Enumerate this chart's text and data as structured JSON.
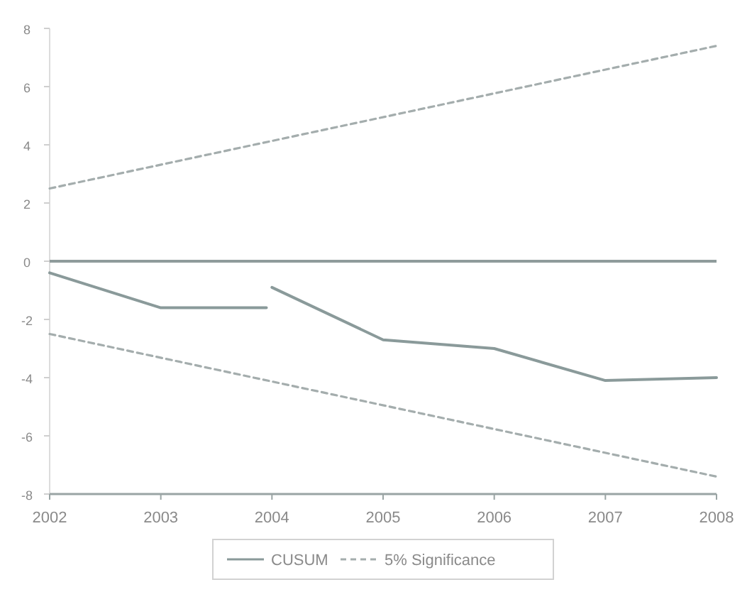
{
  "chart_data": {
    "type": "line",
    "series": [
      {
        "name": "CUSUM",
        "color": "#8a9a9a",
        "line_style": "solid",
        "x": [
          2002,
          2003,
          2003.95,
          2003.97,
          2004,
          2005,
          2006,
          2007,
          2008
        ],
        "values": [
          -0.4,
          -1.6,
          -1.6,
          null,
          -0.9,
          -2.7,
          -3.0,
          -4.1,
          -4.0
        ]
      },
      {
        "name": "5% Significance",
        "color": "#a4adad",
        "line_style": "dashed",
        "x": [
          2002,
          2008
        ],
        "values": [
          2.5,
          7.4
        ]
      },
      {
        "color": "#a4adad",
        "line_style": "dashed",
        "x": [
          2002,
          2008
        ],
        "values": [
          -2.5,
          -7.4
        ]
      }
    ],
    "ref_lines": [
      {
        "axis": "y",
        "value": 0,
        "color": "#8f9b9b"
      }
    ],
    "xlim": [
      2002,
      2008
    ],
    "xticks": [
      2002,
      2003,
      2004,
      2005,
      2006,
      2007,
      2008
    ],
    "ylim": [
      -8,
      8
    ],
    "yticks": [
      -8,
      -6,
      -4,
      -2,
      0,
      2,
      4,
      6,
      8
    ],
    "legend": "bottom"
  }
}
